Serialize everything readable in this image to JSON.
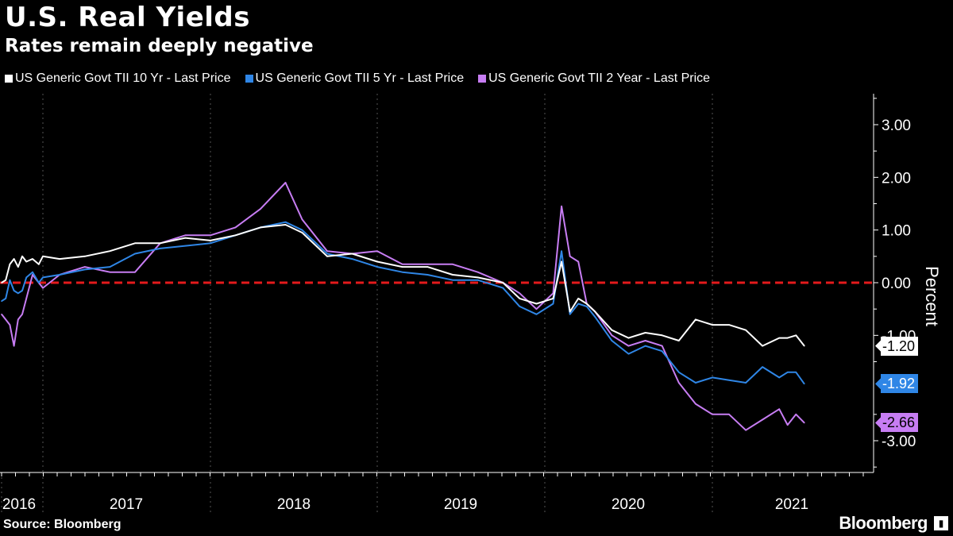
{
  "title": "U.S. Real Yields",
  "subtitle": "Rates remain deeply negative",
  "source": "Source: Bloomberg",
  "brand": "Bloomberg",
  "colors": {
    "background": "#000000",
    "tii10": "#ffffff",
    "tii5": "#2f86e6",
    "tii2": "#c77df3",
    "zero_line": "#e31a1c",
    "axis": "#ffffff",
    "grid": "#555555"
  },
  "chart_data": {
    "type": "line",
    "ylabel": "Percent",
    "ylim": [
      -3.6,
      3.6
    ],
    "y_ticks": [
      3.0,
      2.0,
      1.0,
      0.0,
      -1.0,
      -3.0
    ],
    "y_tick_labels": [
      "3.00",
      "2.00",
      "1.00",
      "0.00",
      "-1.00",
      "-3.00"
    ],
    "x_range": [
      2016.0,
      2021.55
    ],
    "x_ticks": [
      2016,
      2017,
      2018,
      2019,
      2020,
      2021
    ],
    "x_tick_labels": [
      "2016",
      "2017",
      "2018",
      "2019",
      "2020",
      "2021"
    ],
    "legend_placement": "top",
    "zero_line": 0.0,
    "series": [
      {
        "name": "US Generic Govt TII 10 Yr - Last Price",
        "color": "#ffffff",
        "last_value": -1.2,
        "last_label": "-1.20",
        "x": [
          2016.0,
          2016.1,
          2016.2,
          2016.3,
          2016.4,
          2016.5,
          2016.6,
          2016.75,
          2016.9,
          2017.0,
          2017.1,
          2017.25,
          2017.4,
          2017.55,
          2017.7,
          2017.85,
          2018.0,
          2018.15,
          2018.3,
          2018.45,
          2018.55,
          2018.7,
          2018.85,
          2019.0,
          2019.15,
          2019.3,
          2019.45,
          2019.6,
          2019.75,
          2019.85,
          2019.95,
          2020.05,
          2020.1,
          2020.15,
          2020.2,
          2020.25,
          2020.3,
          2020.4,
          2020.5,
          2020.6,
          2020.7,
          2020.8,
          2020.9,
          2021.0,
          2021.1,
          2021.2,
          2021.3,
          2021.4,
          2021.45,
          2021.5,
          2021.55
        ],
        "y": [
          0.0,
          0.05,
          0.35,
          0.45,
          0.3,
          0.5,
          0.4,
          0.45,
          0.35,
          0.5,
          0.45,
          0.5,
          0.6,
          0.75,
          0.75,
          0.85,
          0.8,
          0.9,
          1.05,
          1.1,
          0.95,
          0.5,
          0.55,
          0.4,
          0.3,
          0.3,
          0.15,
          0.1,
          0.0,
          -0.3,
          -0.4,
          -0.3,
          0.4,
          -0.55,
          -0.3,
          -0.4,
          -0.55,
          -0.9,
          -1.05,
          -0.95,
          -1.0,
          -1.1,
          -0.7,
          -0.8,
          -0.8,
          -0.9,
          -1.2,
          -1.05,
          -1.05,
          -1.0,
          -1.2
        ]
      },
      {
        "name": "US Generic Govt TII 5 Yr - Last Price",
        "color": "#2f86e6",
        "last_value": -1.92,
        "last_label": "-1.92",
        "x": [
          2016.0,
          2016.1,
          2016.2,
          2016.3,
          2016.4,
          2016.5,
          2016.6,
          2016.75,
          2016.9,
          2017.0,
          2017.1,
          2017.25,
          2017.4,
          2017.55,
          2017.7,
          2017.85,
          2018.0,
          2018.15,
          2018.3,
          2018.45,
          2018.55,
          2018.7,
          2018.85,
          2019.0,
          2019.15,
          2019.3,
          2019.45,
          2019.6,
          2019.75,
          2019.85,
          2019.95,
          2020.05,
          2020.1,
          2020.15,
          2020.2,
          2020.25,
          2020.3,
          2020.4,
          2020.5,
          2020.6,
          2020.7,
          2020.8,
          2020.9,
          2021.0,
          2021.1,
          2021.2,
          2021.3,
          2021.4,
          2021.45,
          2021.5,
          2021.55
        ],
        "y": [
          -0.35,
          -0.3,
          0.05,
          -0.15,
          -0.2,
          -0.15,
          0.1,
          0.2,
          0.0,
          0.1,
          0.15,
          0.25,
          0.3,
          0.55,
          0.65,
          0.7,
          0.75,
          0.9,
          1.05,
          1.15,
          1.0,
          0.55,
          0.45,
          0.3,
          0.2,
          0.15,
          0.05,
          0.05,
          -0.1,
          -0.45,
          -0.6,
          -0.4,
          0.6,
          -0.6,
          -0.4,
          -0.45,
          -0.65,
          -1.1,
          -1.35,
          -1.2,
          -1.3,
          -1.7,
          -1.9,
          -1.8,
          -1.85,
          -1.9,
          -1.6,
          -1.8,
          -1.7,
          -1.7,
          -1.92
        ]
      },
      {
        "name": "US Generic Govt TII 2 Year - Last Price",
        "color": "#c77df3",
        "last_value": -2.66,
        "last_label": "-2.66",
        "x": [
          2016.0,
          2016.1,
          2016.2,
          2016.3,
          2016.4,
          2016.5,
          2016.6,
          2016.75,
          2016.9,
          2017.0,
          2017.1,
          2017.25,
          2017.4,
          2017.55,
          2017.7,
          2017.85,
          2018.0,
          2018.15,
          2018.3,
          2018.45,
          2018.55,
          2018.7,
          2018.85,
          2019.0,
          2019.15,
          2019.3,
          2019.45,
          2019.6,
          2019.75,
          2019.85,
          2019.95,
          2020.05,
          2020.1,
          2020.15,
          2020.2,
          2020.25,
          2020.3,
          2020.4,
          2020.5,
          2020.6,
          2020.7,
          2020.8,
          2020.9,
          2021.0,
          2021.1,
          2021.2,
          2021.3,
          2021.4,
          2021.45,
          2021.5,
          2021.55
        ],
        "y": [
          -0.6,
          -0.7,
          -0.8,
          -1.2,
          -0.7,
          -0.6,
          -0.3,
          0.15,
          0.0,
          -0.1,
          0.15,
          0.3,
          0.2,
          0.2,
          0.75,
          0.9,
          0.9,
          1.05,
          1.4,
          1.9,
          1.2,
          0.6,
          0.55,
          0.6,
          0.35,
          0.35,
          0.35,
          0.2,
          0.0,
          -0.2,
          -0.5,
          -0.2,
          1.45,
          0.5,
          0.4,
          -0.4,
          -0.55,
          -1.0,
          -1.2,
          -1.1,
          -1.2,
          -1.9,
          -2.3,
          -2.5,
          -2.5,
          -2.8,
          -2.6,
          -2.4,
          -2.7,
          -2.5,
          -2.66
        ]
      }
    ]
  }
}
